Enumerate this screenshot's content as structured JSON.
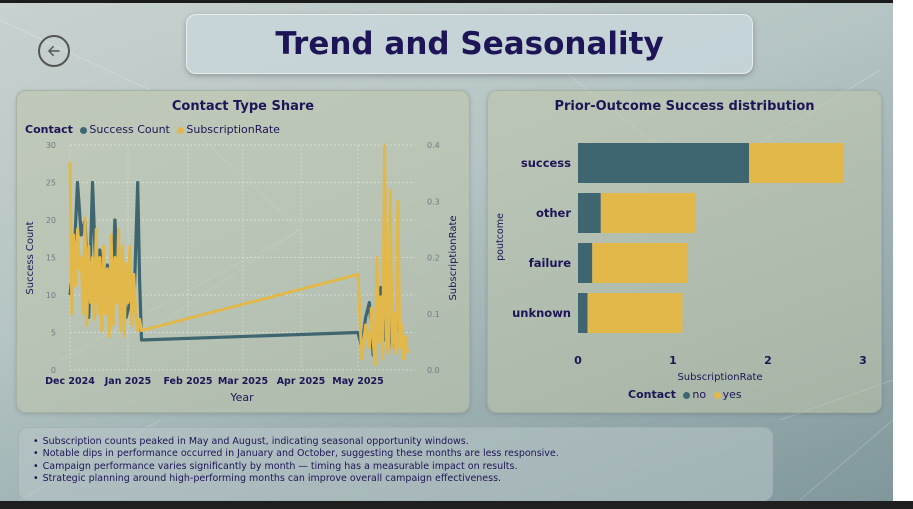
{
  "header": {
    "title": "Trend and Seasonality"
  },
  "nav": {
    "back_icon": "arrow-left-icon"
  },
  "left_chart_card": {
    "title": "Contact Type Share",
    "legend_title": "Contact",
    "legend_items": [
      "Success Count",
      "SubscriptionRate"
    ]
  },
  "right_chart_card": {
    "title": "Prior-Outcome Success distribution",
    "legend_title": "Contact",
    "legend_items": [
      "no",
      "yes"
    ]
  },
  "notes": [
    "Subscription counts peaked in May and August, indicating seasonal opportunity windows.",
    "Notable dips in performance occurred in January and October, suggesting these months are less responsive.",
    "Campaign performance varies significantly by month — timing has a measurable impact on results.",
    "Strategic planning around high-performing months can improve overall campaign effectiveness."
  ],
  "colors": {
    "no": "#3f6670",
    "yes": "#e2b84a",
    "title": "#1e1556"
  },
  "chart_data": [
    {
      "type": "line",
      "title": "Contact Type Share",
      "xlabel": "Year",
      "ylabel": "Success Count",
      "y2label": "SubscriptionRate",
      "categories": [
        "Dec 2024",
        "Jan 2025",
        "Feb 2025",
        "Mar 2025",
        "Apr 2025",
        "May 2025"
      ],
      "ylim": [
        0,
        30
      ],
      "y2lim": [
        0,
        0.4
      ],
      "yticks": [
        "0",
        "5",
        "10",
        "15",
        "20",
        "25",
        "30"
      ],
      "y2ticks": [
        "0.0",
        "0.1",
        "0.2",
        "0.3",
        "0.4"
      ],
      "series": [
        {
          "name": "Success Count",
          "axis": "left",
          "color": "#3f6670",
          "x": [
            "2024-12-01",
            "2024-12-03",
            "2024-12-05",
            "2024-12-07",
            "2024-12-09",
            "2024-12-11",
            "2024-12-13",
            "2024-12-15",
            "2024-12-17",
            "2024-12-19",
            "2024-12-21",
            "2024-12-23",
            "2024-12-25",
            "2024-12-27",
            "2024-12-29",
            "2024-12-31",
            "2025-01-02",
            "2025-01-04",
            "2025-01-06",
            "2025-01-07",
            "2025-01-08",
            "2025-05-01",
            "2025-05-03",
            "2025-05-05",
            "2025-05-07",
            "2025-05-09",
            "2025-05-11",
            "2025-05-13",
            "2025-05-15",
            "2025-05-17",
            "2025-05-19",
            "2025-05-21",
            "2025-05-23",
            "2025-05-25",
            "2025-05-27"
          ],
          "values": [
            10,
            14,
            25,
            18,
            20,
            7,
            25,
            12,
            16,
            10,
            14,
            8,
            20,
            11,
            13,
            7,
            9,
            8,
            25,
            12,
            4,
            5,
            3,
            7,
            9,
            2,
            6,
            11,
            4,
            8,
            3,
            7,
            5,
            4,
            4
          ]
        },
        {
          "name": "SubscriptionRate",
          "axis": "right",
          "color": "#e2b84a",
          "x": [
            "2024-12-01",
            "2024-12-02",
            "2024-12-03",
            "2024-12-04",
            "2024-12-05",
            "2024-12-06",
            "2024-12-07",
            "2024-12-08",
            "2024-12-09",
            "2024-12-10",
            "2024-12-11",
            "2024-12-12",
            "2024-12-13",
            "2024-12-14",
            "2024-12-15",
            "2024-12-16",
            "2024-12-17",
            "2024-12-18",
            "2024-12-19",
            "2024-12-20",
            "2024-12-21",
            "2024-12-22",
            "2024-12-23",
            "2024-12-24",
            "2024-12-25",
            "2024-12-26",
            "2024-12-27",
            "2024-12-28",
            "2024-12-29",
            "2024-12-30",
            "2024-12-31",
            "2025-01-01",
            "2025-01-02",
            "2025-01-03",
            "2025-01-04",
            "2025-01-05",
            "2025-01-06",
            "2025-01-07",
            "2025-01-08",
            "2025-05-01",
            "2025-05-03",
            "2025-05-05",
            "2025-05-07",
            "2025-05-08",
            "2025-05-09",
            "2025-05-10",
            "2025-05-11",
            "2025-05-12",
            "2025-05-13",
            "2025-05-14",
            "2025-05-15",
            "2025-05-16",
            "2025-05-17",
            "2025-05-18",
            "2025-05-19",
            "2025-05-20",
            "2025-05-21",
            "2025-05-22",
            "2025-05-23",
            "2025-05-24",
            "2025-05-25",
            "2025-05-26",
            "2025-05-27"
          ],
          "values": [
            0.37,
            0.1,
            0.24,
            0.15,
            0.25,
            0.18,
            0.2,
            0.1,
            0.27,
            0.08,
            0.22,
            0.12,
            0.2,
            0.09,
            0.25,
            0.1,
            0.2,
            0.07,
            0.22,
            0.1,
            0.18,
            0.06,
            0.24,
            0.08,
            0.2,
            0.12,
            0.25,
            0.07,
            0.22,
            0.06,
            0.19,
            0.12,
            0.22,
            0.08,
            0.17,
            0.1,
            0.07,
            0.09,
            0.07,
            0.17,
            0.02,
            0.08,
            0.04,
            0.11,
            0.05,
            0.01,
            0.2,
            0.05,
            0.13,
            0.02,
            0.4,
            0.05,
            0.03,
            0.32,
            0.04,
            0.1,
            0.03,
            0.3,
            0.04,
            0.08,
            0.02,
            0.06,
            0.03
          ]
        }
      ]
    },
    {
      "type": "bar",
      "orientation": "horizontal",
      "stacked": true,
      "title": "Prior-Outcome Success distribution",
      "xlabel": "SubscriptionRate",
      "ylabel": "poutcome",
      "categories": [
        "success",
        "other",
        "failure",
        "unknown"
      ],
      "xlim": [
        0,
        3
      ],
      "xticks": [
        "0",
        "1",
        "2",
        "3"
      ],
      "series": [
        {
          "name": "no",
          "color": "#3f6670",
          "values": [
            1.8,
            0.24,
            0.15,
            0.1
          ]
        },
        {
          "name": "yes",
          "color": "#e2b84a",
          "values": [
            1.0,
            1.0,
            1.0,
            1.0
          ]
        }
      ]
    }
  ]
}
